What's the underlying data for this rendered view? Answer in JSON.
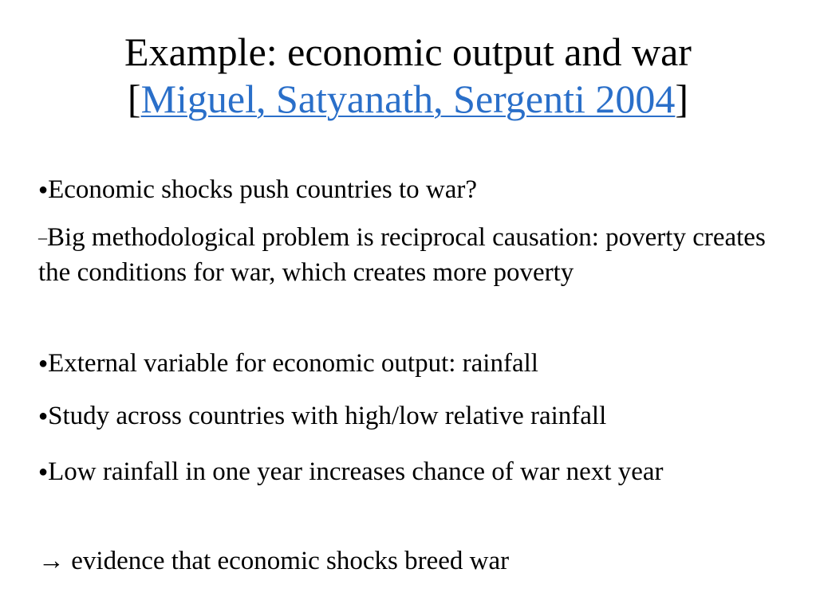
{
  "slide": {
    "title_line1": "Example: economic output and war",
    "title_open_bracket": "[",
    "title_link": "Miguel, Satyanath, Sergenti 2004",
    "title_close_bracket": "]",
    "link_color": "#2a6fc9",
    "bullet_glyph": "●",
    "dash_glyph": "–",
    "items": [
      {
        "text": "Economic shocks push countries to war?"
      },
      {
        "text": "Big methodological problem is reciprocal causation: poverty creates the conditions for war, which creates more poverty"
      },
      {
        "text": "External variable for economic output: rainfall"
      },
      {
        "text": "Study across countries with high/low relative rainfall"
      },
      {
        "text": "Low rainfall in one year increases chance of war next year"
      },
      {
        "text": "→ evidence that economic shocks breed war"
      }
    ]
  }
}
